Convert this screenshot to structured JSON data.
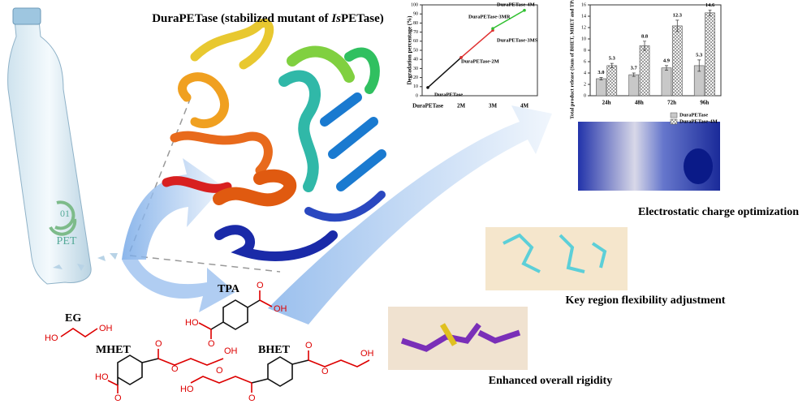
{
  "title": {
    "before": "DuraPETase (stabilized mutant of ",
    "italic": "Is",
    "after": "PETase)"
  },
  "bottle": {
    "label": "PET",
    "code": "01"
  },
  "molecules": [
    {
      "name": "TPA",
      "atoms": [
        "O",
        "OH",
        "HO",
        "O"
      ]
    },
    {
      "name": "EG",
      "atoms": [
        "HO",
        "OH"
      ]
    },
    {
      "name": "MHET",
      "atoms": [
        "O",
        "O",
        "OH",
        "HO",
        "O"
      ]
    },
    {
      "name": "BHET",
      "atoms": [
        "O",
        "O",
        "OH",
        "HO",
        "O",
        "O"
      ]
    }
  ],
  "features": [
    "Electrostatic charge optimization",
    "Key region flexibility adjustment",
    "Enhanced overall rigidity"
  ],
  "charts": [
    {
      "type": "line",
      "y_label": "Degradation percentage (%)",
      "categories": [
        "DuraPETase",
        "2M",
        "3M",
        "4M"
      ],
      "series": [
        {
          "color": "#111111",
          "values": [
            9,
            42,
            null,
            null
          ]
        },
        {
          "color": "#e03030",
          "values": [
            null,
            42,
            72,
            null
          ]
        },
        {
          "color": "#30c030",
          "values": [
            null,
            null,
            74,
            94
          ]
        }
      ],
      "annotations": [
        "DuraPETase",
        "DuraPETase-2M",
        "DuraPETase-3MS",
        "DuraPETase-3MR",
        "DuraPETase-4M"
      ],
      "ylim": [
        0,
        100
      ],
      "yticks": [
        0,
        10,
        20,
        30,
        40,
        50,
        60,
        70,
        80,
        90,
        100
      ]
    },
    {
      "type": "bar",
      "y_label": "Total product release (Sum of BHET, MHET and TPA) (mM)",
      "categories": [
        "24h",
        "48h",
        "72h",
        "96h"
      ],
      "series": [
        {
          "name": "DuraPETase",
          "color": "#c8c8c8",
          "values": [
            3.0,
            3.7,
            4.9,
            5.3
          ],
          "value_labels": [
            "3.0",
            "3.7",
            "4.9",
            "5.3"
          ],
          "errors": [
            0.2,
            0.3,
            0.4,
            1.0
          ]
        },
        {
          "name": "DuraPETase-4M",
          "color": "#f4f4f4",
          "values": [
            5.3,
            8.8,
            12.3,
            14.6
          ],
          "value_labels": [
            "5.3",
            "8.8",
            "12.3",
            "14.6"
          ],
          "errors": [
            0.4,
            0.8,
            1.0,
            0.5
          ]
        }
      ],
      "ylim": [
        0,
        16
      ],
      "yticks": [
        0,
        2,
        4,
        6,
        8,
        10,
        12,
        14,
        16
      ],
      "legend": "bottom-right"
    }
  ]
}
